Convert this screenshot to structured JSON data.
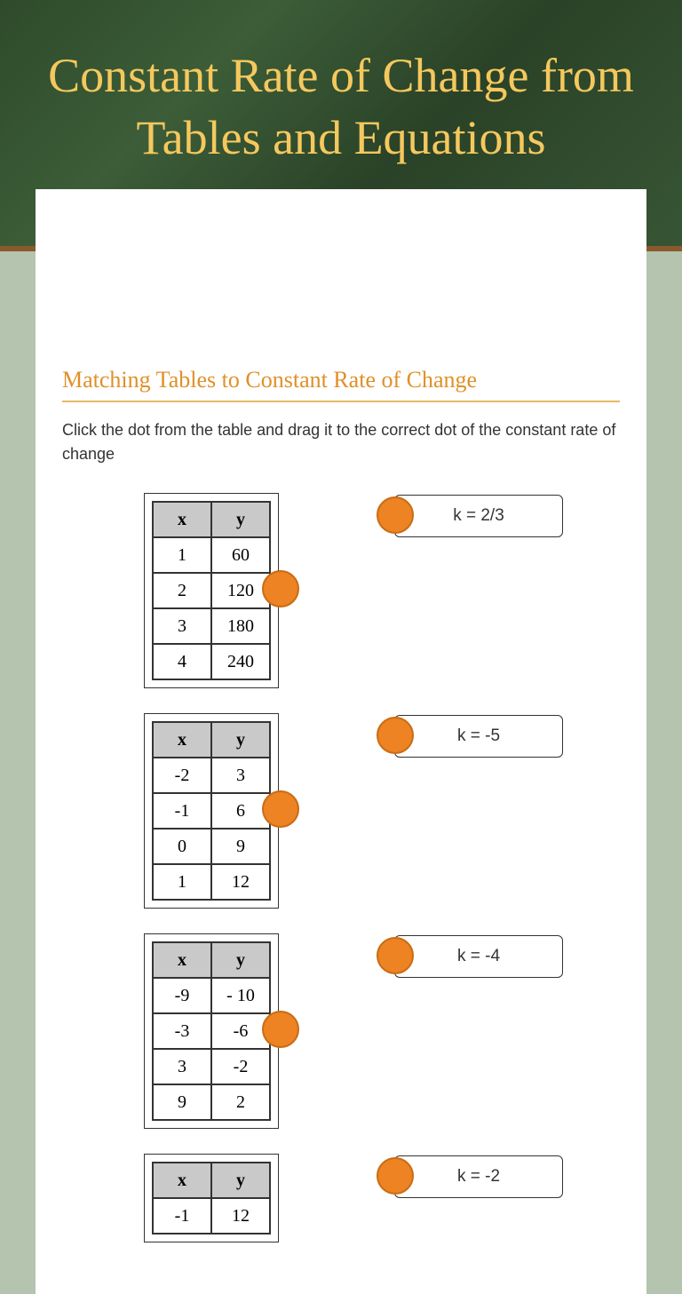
{
  "header": {
    "title": "Constant Rate of Change from Tables and Equations"
  },
  "section": {
    "title": "Matching Tables to Constant Rate of Change",
    "instructions": "Click the dot from the table and drag it to the correct dot of the constant rate of change"
  },
  "styling": {
    "chalkboard_gradient": [
      "#2e4a2a",
      "#3c5d38"
    ],
    "title_color": "#f5c85e",
    "section_title_color": "#e09028",
    "dot_fill": "#ed8322",
    "dot_border": "#c96c15",
    "page_bg": "#b4c4af",
    "table_header_bg": "#c9c9c9",
    "font_title": "Segoe Script",
    "font_table": "Comic Sans MS",
    "title_fontsize": 54,
    "section_fontsize": 26,
    "instructions_fontsize": 18
  },
  "tables": {
    "headers": [
      "x",
      "y"
    ],
    "t1": {
      "rows": [
        [
          "1",
          "60"
        ],
        [
          "2",
          "120"
        ],
        [
          "3",
          "180"
        ],
        [
          "4",
          "240"
        ]
      ]
    },
    "t2": {
      "rows": [
        [
          "-2",
          "3"
        ],
        [
          "-1",
          "6"
        ],
        [
          "0",
          "9"
        ],
        [
          "1",
          "12"
        ]
      ]
    },
    "t3": {
      "rows": [
        [
          "-9",
          "- 10"
        ],
        [
          "-3",
          "-6"
        ],
        [
          "3",
          "-2"
        ],
        [
          "9",
          "2"
        ]
      ]
    },
    "t4": {
      "rows": [
        [
          "-1",
          "12"
        ]
      ]
    }
  },
  "answers": {
    "a1": "k = 2/3",
    "a2": "k = -5",
    "a3": "k = -4",
    "a4": "k = -2"
  }
}
